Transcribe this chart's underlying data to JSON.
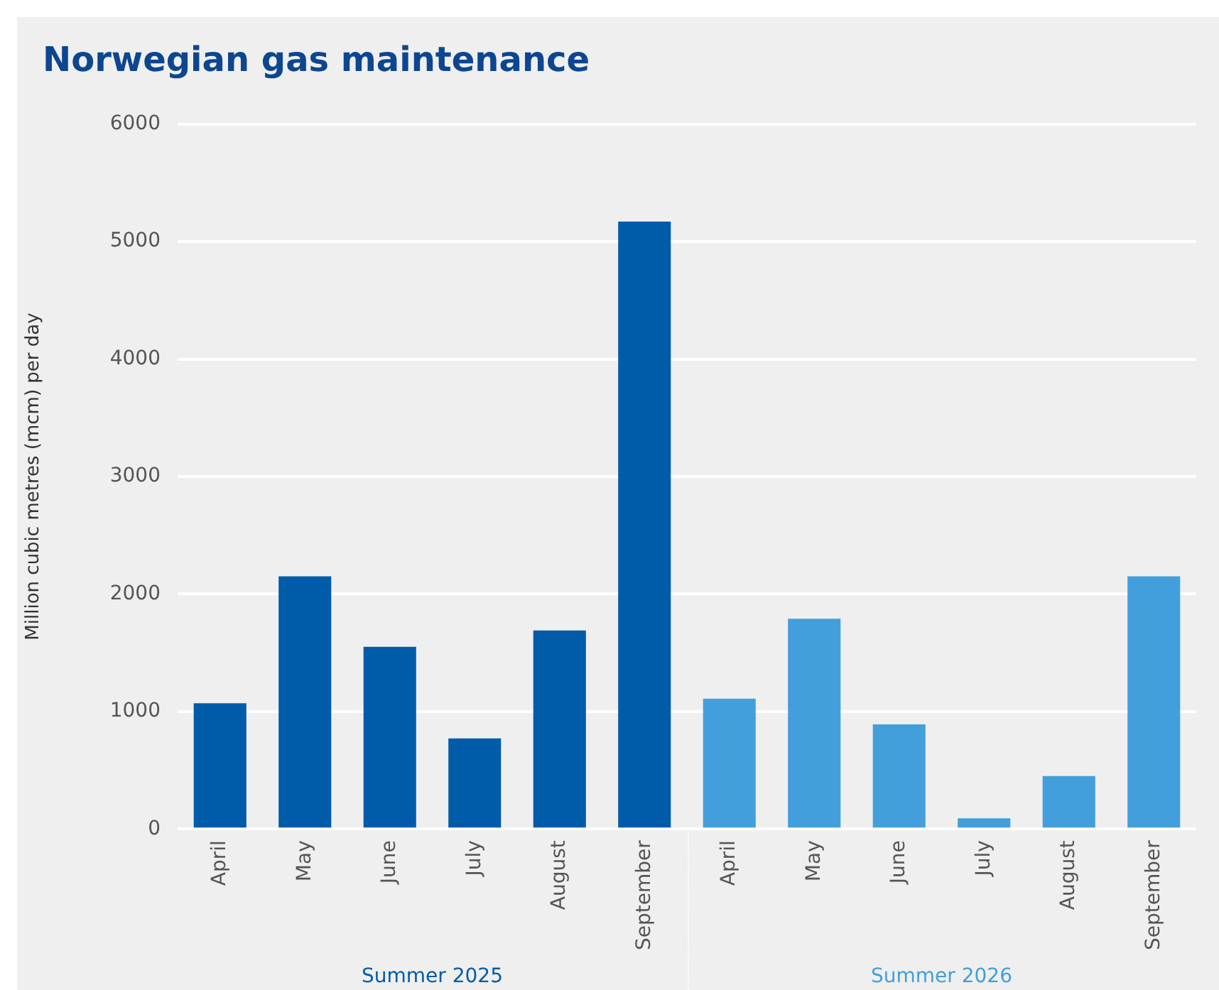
{
  "chart_data": {
    "type": "bar",
    "title": "Norwegian gas maintenance",
    "ylabel": "Million cubic metres (mcm) per day",
    "categories": [
      "April",
      "May",
      "June",
      "July",
      "August",
      "September",
      "April",
      "May",
      "June",
      "July",
      "August",
      "September"
    ],
    "series": [
      {
        "name": "Summer 2025",
        "color": "#005ca9",
        "values": [
          1070,
          2150,
          1550,
          770,
          1690,
          5170,
          null,
          null,
          null,
          null,
          null,
          null
        ]
      },
      {
        "name": "Summer 2026",
        "color": "#429fdb",
        "values": [
          null,
          null,
          null,
          null,
          null,
          null,
          1110,
          1790,
          890,
          90,
          450,
          2150
        ]
      }
    ],
    "ylim": [
      0,
      6000
    ],
    "yticks": [
      0,
      1000,
      2000,
      3000,
      4000,
      5000,
      6000
    ],
    "grid": "y",
    "legend": false
  }
}
